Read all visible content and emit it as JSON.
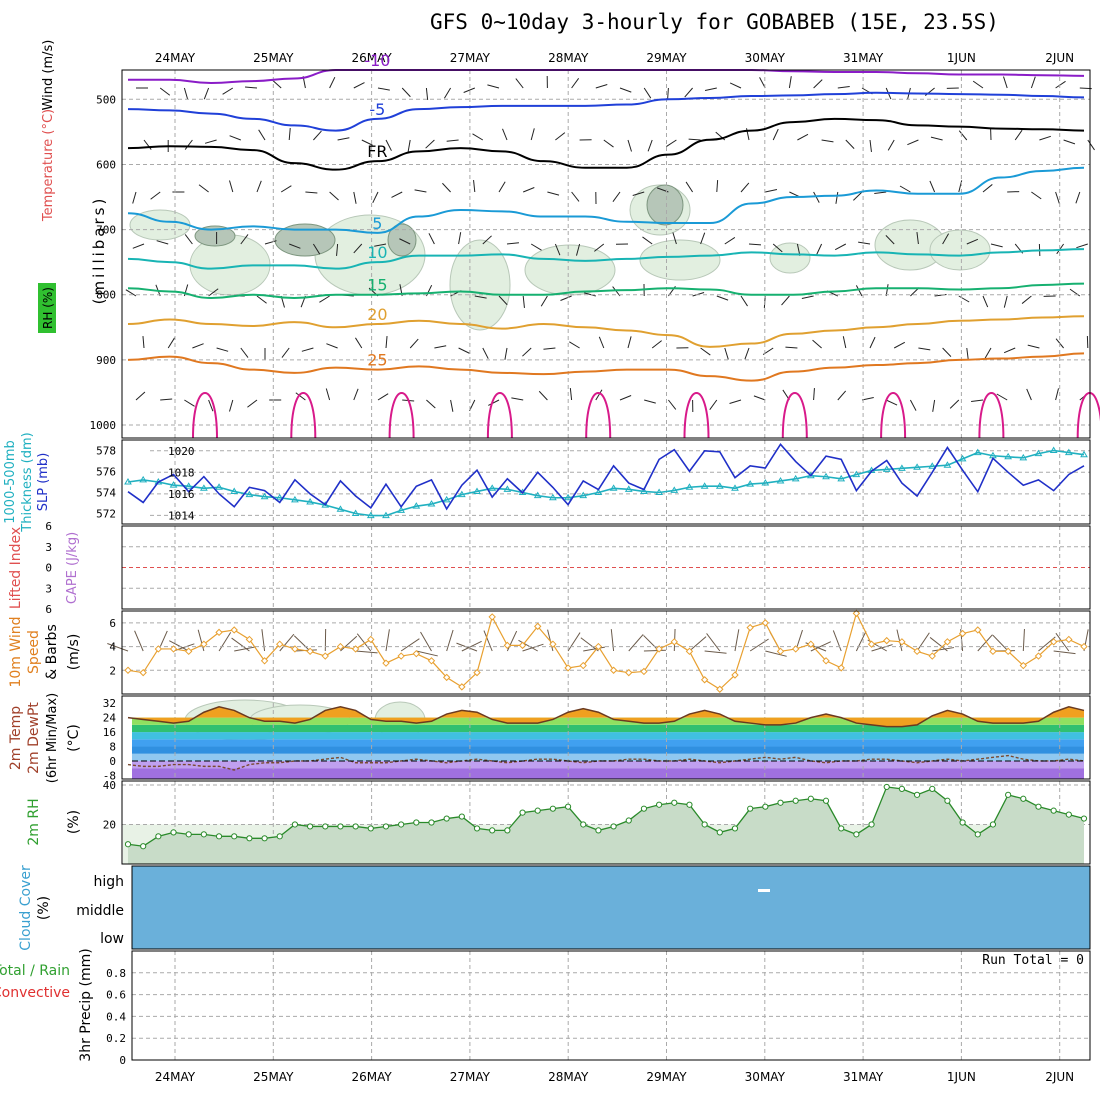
{
  "title": "GFS 0~10day 3-hourly for GOBABEB (15E, 23.5S)",
  "chart_data": {
    "type": "meteogram",
    "dates": [
      "24MAY",
      "25MAY",
      "26MAY",
      "27MAY",
      "28MAY",
      "29MAY",
      "30MAY",
      "31MAY",
      "1JUN",
      "2JUN"
    ],
    "colors": {
      "purple": "#8a1cc7",
      "blue": "#2040d8",
      "black": "#000000",
      "cyan": "#1a9ad6",
      "teal": "#18b4b4",
      "green": "#16b070",
      "orange": "#e0a030",
      "dkorange": "#e07820",
      "magenta": "#d81a8a",
      "rhfill": "#e2efe0",
      "rhdark": "#93ab95"
    },
    "upper": {
      "yaxis_label": "(millibars)",
      "side_labels": [
        "Temperature (°C)",
        "Wind (m/s)",
        "RH (%)"
      ],
      "pressure_ticks": [
        "500",
        "600",
        "700",
        "800",
        "900",
        "1000"
      ],
      "pressure_range": [
        455,
        1020
      ],
      "contours": [
        {
          "name": "-10",
          "color": "#8a1cc7",
          "levels": [
            470,
            470,
            475,
            472,
            468,
            455,
            455,
            455,
            455,
            455,
            455,
            455,
            455,
            455,
            455,
            455,
            457,
            458,
            458,
            460,
            462,
            462,
            463,
            464
          ]
        },
        {
          "name": "-5",
          "color": "#2040d8",
          "levels": [
            515,
            517,
            522,
            530,
            540,
            548,
            530,
            515,
            512,
            510,
            510,
            510,
            508,
            500,
            498,
            495,
            494,
            492,
            490,
            491,
            492,
            493,
            495,
            497
          ]
        },
        {
          "name": "FR",
          "color": "#000000",
          "levels": [
            575,
            572,
            573,
            578,
            598,
            608,
            595,
            580,
            575,
            580,
            595,
            605,
            605,
            585,
            562,
            548,
            535,
            530,
            532,
            540,
            542,
            545,
            546,
            548
          ]
        },
        {
          "name": "5",
          "color": "#1a9ad6",
          "levels": [
            675,
            688,
            700,
            695,
            700,
            700,
            705,
            680,
            670,
            672,
            680,
            680,
            688,
            690,
            690,
            660,
            650,
            648,
            640,
            645,
            645,
            620,
            610,
            605
          ]
        },
        {
          "name": "10",
          "color": "#18b4b4",
          "levels": [
            745,
            750,
            760,
            755,
            755,
            760,
            750,
            740,
            740,
            738,
            745,
            748,
            745,
            742,
            740,
            735,
            738,
            740,
            735,
            738,
            740,
            735,
            732,
            730
          ]
        },
        {
          "name": "15",
          "color": "#16b070",
          "levels": [
            790,
            795,
            805,
            800,
            805,
            800,
            800,
            798,
            795,
            800,
            800,
            795,
            793,
            790,
            792,
            800,
            800,
            795,
            790,
            790,
            792,
            790,
            785,
            783
          ]
        },
        {
          "name": "20",
          "color": "#e0a030",
          "levels": [
            845,
            838,
            845,
            848,
            842,
            850,
            845,
            840,
            845,
            852,
            845,
            850,
            855,
            862,
            880,
            875,
            860,
            855,
            850,
            845,
            840,
            838,
            835,
            833
          ]
        },
        {
          "name": "25",
          "color": "#e07820",
          "levels": [
            900,
            895,
            905,
            915,
            920,
            912,
            915,
            910,
            915,
            920,
            922,
            918,
            915,
            915,
            925,
            932,
            918,
            912,
            908,
            905,
            900,
            898,
            895,
            890
          ]
        }
      ]
    },
    "thickness_slp": {
      "left_labels": [
        "1000-500mb",
        "Thickness (dm)"
      ],
      "right_labels": [
        "SLP (mb)"
      ],
      "thickness_ticks": [
        "572",
        "574",
        "576",
        "578"
      ],
      "thickness_range": [
        571,
        579
      ],
      "slp_ticks": [
        "1014",
        "1016",
        "1018",
        "1020"
      ],
      "slp_range": [
        1013.2,
        1021.0
      ],
      "slp": [
        1016.2,
        1015.2,
        1017.1,
        1017.8,
        1016.2,
        1017.6,
        1016.0,
        1014.8,
        1016.6,
        1016.3,
        1015.2,
        1017.3,
        1016.0,
        1015.0,
        1017.2,
        1015.8,
        1014.7,
        1016.9,
        1014.8,
        1016.7,
        1017.3,
        1014.6,
        1016.8,
        1018.2,
        1015.7,
        1017.4,
        1016.1,
        1018.0,
        1016.6,
        1015.0,
        1017.2,
        1016.4,
        1018.6,
        1017.0,
        1016.4,
        1019.2,
        1020.1,
        1018.1,
        1020.0,
        1019.9,
        1017.5,
        1018.6,
        1018.4,
        1020.6,
        1019.0,
        1017.7,
        1019.5,
        1019.2,
        1016.3,
        1018.1,
        1019.1,
        1017.0,
        1015.8,
        1018.0,
        1020.3,
        1018.2,
        1016.2,
        1019.3,
        1018.0,
        1016.8,
        1017.3,
        1016.3,
        1017.8,
        1018.6
      ],
      "thickness": [
        575.0,
        575.2,
        575.0,
        574.7,
        574.6,
        574.4,
        574.5,
        574.1,
        573.8,
        573.6,
        573.5,
        573.3,
        573.1,
        572.8,
        572.4,
        572.0,
        571.8,
        571.8,
        572.3,
        572.7,
        572.9,
        573.3,
        573.8,
        574.1,
        574.4,
        574.3,
        574.0,
        573.7,
        573.5,
        573.5,
        573.7,
        574.0,
        574.4,
        574.3,
        574.1,
        574.0,
        574.2,
        574.5,
        574.6,
        574.6,
        574.4,
        574.8,
        574.9,
        575.1,
        575.3,
        575.6,
        575.5,
        575.3,
        575.7,
        576.1,
        576.2,
        576.3,
        576.4,
        576.5,
        576.6,
        577.2,
        577.8,
        577.5,
        577.4,
        577.3,
        577.7,
        578.0,
        577.8,
        577.6
      ]
    },
    "cape_li": {
      "left_labels": [
        "Lifted Index",
        "CAPE (J/kg)"
      ],
      "ticks": [
        "6",
        "3",
        "0",
        "3",
        "6"
      ],
      "range": [
        -6,
        6
      ]
    },
    "wind10m": {
      "left_labels": [
        "10m Wind",
        "Speed",
        "& Barbs"
      ],
      "unit": "(m/s)",
      "ticks": [
        "2",
        "4",
        "6"
      ],
      "range": [
        0,
        7
      ],
      "speed": [
        2.0,
        1.8,
        3.8,
        3.8,
        3.6,
        4.2,
        5.2,
        5.4,
        4.6,
        2.8,
        4.2,
        3.8,
        3.6,
        3.2,
        4.0,
        3.8,
        4.6,
        2.6,
        3.2,
        3.4,
        2.8,
        1.4,
        0.6,
        1.8,
        6.5,
        4.1,
        4.1,
        5.7,
        4.2,
        2.2,
        2.4,
        4.0,
        2.0,
        1.8,
        1.9,
        3.8,
        4.4,
        3.6,
        1.2,
        0.4,
        1.6,
        5.6,
        6.0,
        3.6,
        3.8,
        4.2,
        2.8,
        2.2,
        6.8,
        4.2,
        4.5,
        4.4,
        3.6,
        3.2,
        4.4,
        5.1,
        5.4,
        3.6,
        3.6,
        2.4,
        3.2,
        4.4,
        4.6,
        4.0
      ]
    },
    "temp2m": {
      "left_labels": [
        "2m Temp",
        "2m DewPt",
        "(6hr Min/Max)"
      ],
      "unit": "(°C)",
      "ticks": [
        "-8",
        "0",
        "8",
        "16",
        "24",
        "32"
      ],
      "range": [
        -10,
        36
      ],
      "temp": [
        24,
        23,
        22,
        21,
        22,
        27,
        30,
        28,
        24,
        22,
        22,
        21,
        23,
        28,
        30,
        28,
        23,
        22,
        22,
        21,
        22,
        26,
        28,
        27,
        23,
        21,
        21,
        21,
        23,
        27,
        29,
        27,
        23,
        22,
        21,
        21,
        22,
        26,
        28,
        26,
        22,
        21,
        20,
        20,
        21,
        24,
        26,
        24,
        21,
        20,
        19,
        19,
        20,
        25,
        28,
        26,
        22,
        21,
        21,
        21,
        22,
        27,
        30,
        28
      ],
      "dewpt": [
        -2,
        -3,
        -3,
        -2,
        -2,
        -3,
        -3,
        -5,
        -2,
        -1,
        -1,
        0,
        0,
        1,
        2,
        -1,
        -1,
        -1,
        0,
        1,
        0,
        -1,
        0,
        1,
        0,
        -1,
        0,
        1,
        1,
        0,
        -1,
        0,
        0,
        1,
        1,
        0,
        0,
        1,
        0,
        -1,
        0,
        1,
        2,
        1,
        2,
        0,
        -1,
        0,
        0,
        1,
        1,
        0,
        -1,
        0,
        1,
        0,
        1,
        2,
        3,
        1,
        0,
        0,
        1,
        0
      ]
    },
    "rh2m": {
      "left_labels": [
        "2m RH"
      ],
      "unit": "(%)",
      "ticks": [
        "20",
        "40"
      ],
      "range": [
        0,
        42
      ],
      "rh": [
        10,
        9,
        14,
        16,
        15,
        15,
        14,
        14,
        13,
        13,
        14,
        20,
        19,
        19,
        19,
        19,
        18,
        19,
        20,
        21,
        21,
        23,
        24,
        18,
        17,
        17,
        26,
        27,
        28,
        29,
        20,
        17,
        19,
        22,
        28,
        30,
        31,
        30,
        20,
        16,
        18,
        28,
        29,
        31,
        32,
        33,
        32,
        18,
        15,
        20,
        39,
        38,
        35,
        38,
        32,
        21,
        15,
        20,
        35,
        33,
        29,
        27,
        25,
        23
      ]
    },
    "cloud": {
      "left_labels": [
        "Cloud Cover",
        "(%)"
      ],
      "levels": [
        "high",
        "middle",
        "low"
      ],
      "fill_color": "#6ab0da",
      "cover_percent": 100
    },
    "precip": {
      "left_labels": [
        "Total / Rain",
        "Convective",
        "3hr Precip (mm)"
      ],
      "ticks": [
        "0",
        "0.2",
        "0.4",
        "0.6",
        "0.8"
      ],
      "range": [
        0,
        1
      ],
      "run_total_label": "Run Total = 0",
      "values": [
        0,
        0,
        0,
        0,
        0,
        0,
        0,
        0,
        0,
        0,
        0,
        0,
        0,
        0,
        0,
        0,
        0,
        0,
        0,
        0,
        0,
        0,
        0,
        0,
        0,
        0,
        0,
        0,
        0,
        0,
        0,
        0,
        0,
        0,
        0,
        0,
        0,
        0,
        0,
        0,
        0,
        0,
        0,
        0,
        0,
        0,
        0,
        0,
        0,
        0,
        0,
        0,
        0,
        0,
        0,
        0,
        0,
        0,
        0,
        0,
        0,
        0,
        0,
        0
      ]
    }
  }
}
